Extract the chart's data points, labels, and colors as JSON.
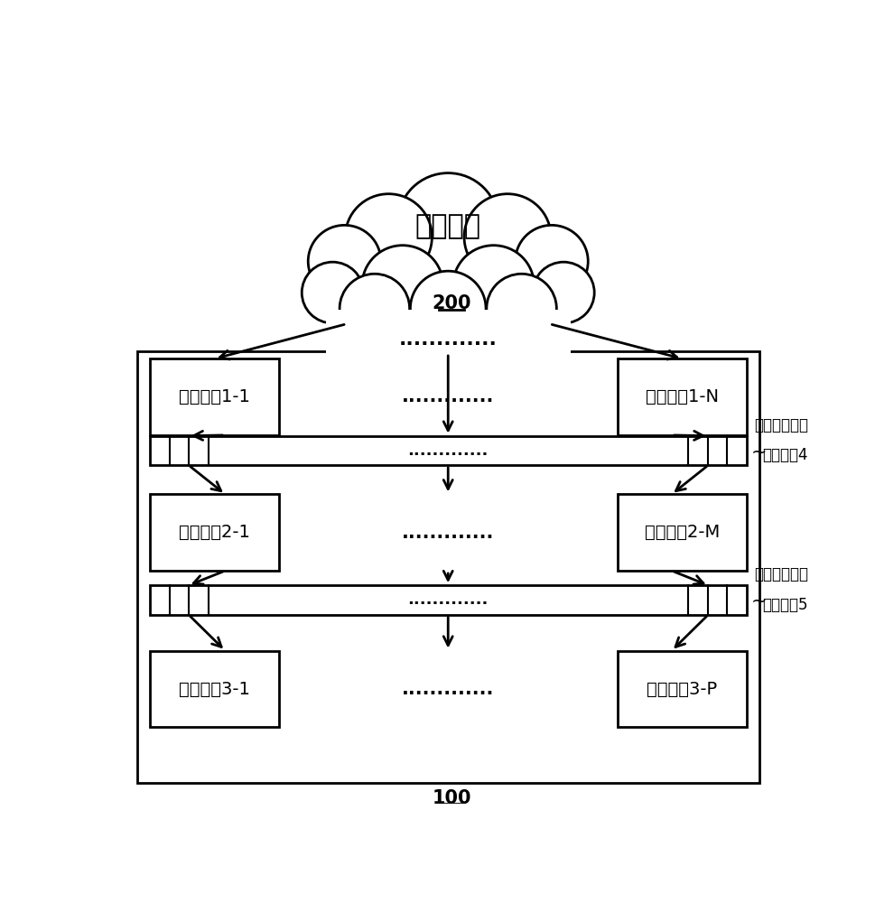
{
  "bg_color": "#ffffff",
  "line_color": "#000000",
  "cloud_label": "网络集群",
  "cloud_ref": "200",
  "system_ref": "100",
  "box1_left_label": "采集模其1-1",
  "box1_right_label": "采集模其1-N",
  "box2_left_label": "过滤模其2-1",
  "box2_right_label": "过滤模其2-M",
  "box3_left_label": "通知模其3-1",
  "box3_right_label": "通知模其3-P",
  "queue1_label1": "第一消息队列",
  "queue1_label2": "（集群）4",
  "queue2_label1": "第二消息队列",
  "queue2_label2": "（集群）5",
  "dots": ".............",
  "font_size_label": 14,
  "font_size_ref": 14
}
